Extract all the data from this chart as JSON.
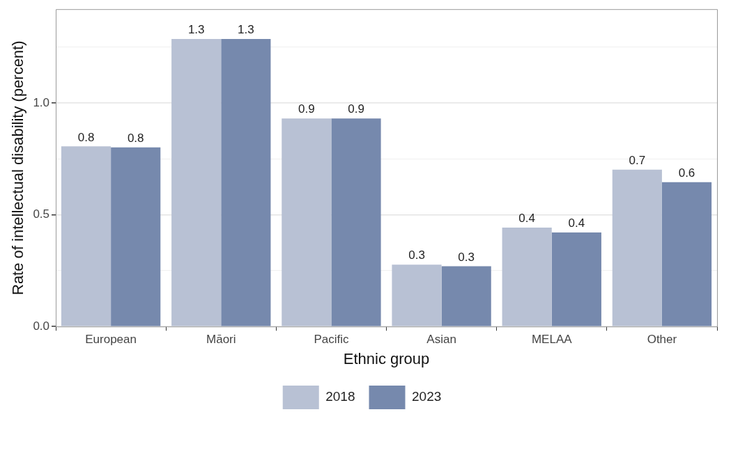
{
  "chart_data": {
    "type": "bar",
    "xlabel": "Ethnic group",
    "ylabel": "Rate of intellectual disability (percent)",
    "categories": [
      "European",
      "Māori",
      "Pacific",
      "Asian",
      "MELAA",
      "Other"
    ],
    "series": [
      {
        "name": "2018",
        "color": "#b8c1d4",
        "values": [
          0.806,
          1.287,
          0.931,
          0.277,
          0.443,
          0.702
        ],
        "value_labels": [
          "0.8",
          "1.3",
          "0.9",
          "0.3",
          "0.4",
          "0.7"
        ]
      },
      {
        "name": "2023",
        "color": "#7689ad",
        "values": [
          0.802,
          1.287,
          0.931,
          0.27,
          0.421,
          0.646
        ],
        "value_labels": [
          "0.8",
          "1.3",
          "0.9",
          "0.3",
          "0.4",
          "0.6"
        ]
      }
    ],
    "ylim": [
      0,
      1.42
    ],
    "yticks": [
      {
        "value": 0,
        "label": "0.0"
      },
      {
        "value": 0.25,
        "label": null
      },
      {
        "value": 0.5,
        "label": "0.5"
      },
      {
        "value": 0.75,
        "label": null
      },
      {
        "value": 1,
        "label": "1.0"
      },
      {
        "value": 1.25,
        "label": null
      }
    ],
    "grid": true,
    "legend": "bottom"
  }
}
